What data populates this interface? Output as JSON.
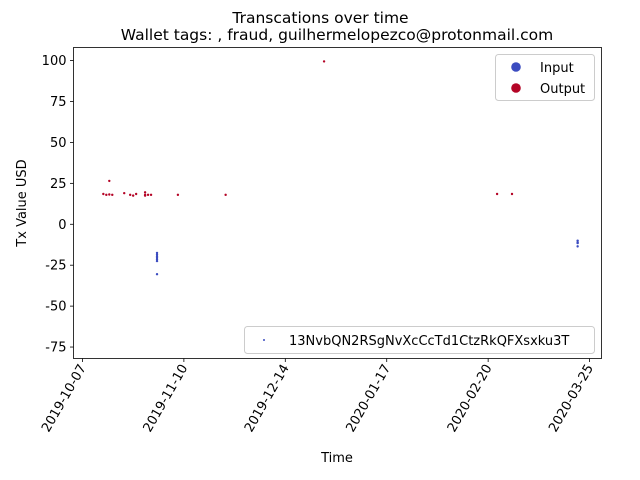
{
  "chart_data": {
    "type": "scatter",
    "title": "Transcations over time",
    "subtitle": "Wallet tags: , fraud, guilhermelopezco@protonmail.com",
    "xlabel": "Time",
    "ylabel": "Tx Value USD",
    "xlim": [
      "2019-10-04",
      "2020-03-29"
    ],
    "ylim": [
      -82,
      108
    ],
    "x_ticks": [
      "2019-10-07",
      "2019-11-10",
      "2019-12-14",
      "2020-01-17",
      "2020-02-20",
      "2020-03-25"
    ],
    "y_ticks": [
      -75,
      -50,
      -25,
      0,
      25,
      50,
      75,
      100
    ],
    "grid": false,
    "legends": [
      {
        "placement": "top-right",
        "entries": [
          {
            "name": "Input",
            "color": "#3b4cc0"
          },
          {
            "name": "Output",
            "color": "#b40426"
          }
        ]
      },
      {
        "placement": "bottom-right",
        "entries": [
          {
            "name": "13NvbQN2RSgNvXcCcTd1CtzRkQFXsxku3T",
            "color": "#3b4cc0"
          }
        ]
      }
    ],
    "series": [
      {
        "name": "Output",
        "color": "#b40426",
        "points": [
          {
            "x": "2019-10-14",
            "y": 18.5
          },
          {
            "x": "2019-10-15",
            "y": 18
          },
          {
            "x": "2019-10-16",
            "y": 18.2
          },
          {
            "x": "2019-10-16",
            "y": 26.5
          },
          {
            "x": "2019-10-17",
            "y": 18
          },
          {
            "x": "2019-10-21",
            "y": 19
          },
          {
            "x": "2019-10-23",
            "y": 18
          },
          {
            "x": "2019-10-24",
            "y": 17.5
          },
          {
            "x": "2019-10-25",
            "y": 18.5
          },
          {
            "x": "2019-10-28",
            "y": 18
          },
          {
            "x": "2019-10-28",
            "y": 19.5
          },
          {
            "x": "2019-10-28",
            "y": 17.5
          },
          {
            "x": "2019-10-29",
            "y": 18
          },
          {
            "x": "2019-10-30",
            "y": 18
          },
          {
            "x": "2019-11-08",
            "y": 18
          },
          {
            "x": "2019-11-24",
            "y": 18
          },
          {
            "x": "2019-12-27",
            "y": 99.5
          },
          {
            "x": "2020-02-23",
            "y": 18.5
          },
          {
            "x": "2020-02-28",
            "y": 18.5
          }
        ]
      },
      {
        "name": "Input",
        "color": "#3b4cc0",
        "points": [
          {
            "x": "2019-11-01",
            "y": -17.5
          },
          {
            "x": "2019-11-01",
            "y": -18.5
          },
          {
            "x": "2019-11-01",
            "y": -19.5
          },
          {
            "x": "2019-11-01",
            "y": -20.5
          },
          {
            "x": "2019-11-01",
            "y": -21.5
          },
          {
            "x": "2019-11-01",
            "y": -22.5
          },
          {
            "x": "2019-11-01",
            "y": -30.5
          },
          {
            "x": "2020-03-21",
            "y": -10
          },
          {
            "x": "2020-03-21",
            "y": -11
          },
          {
            "x": "2020-03-21",
            "y": -11.5
          },
          {
            "x": "2020-03-21",
            "y": -13.5
          }
        ]
      }
    ]
  }
}
